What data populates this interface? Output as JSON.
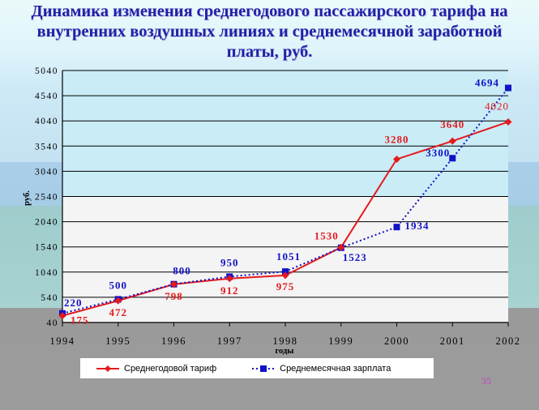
{
  "title_lines": [
    "Динамика изменения среднегодового пассажирского тарифа на",
    "внутренних воздушных линиях и среднемесячной заработной",
    "платы, руб."
  ],
  "page_number": "35",
  "colors": {
    "tariff": "#e41a1c",
    "salary": "#1212c8",
    "title": "#2020a8"
  },
  "chart_data": {
    "type": "line",
    "title": "Динамика изменения среднегодового пассажирского тарифа на внутренних воздушных линиях и среднемесячной заработной платы, руб.",
    "xlabel": "годы",
    "ylabel": "руб.",
    "x": [
      1994,
      1995,
      1996,
      1997,
      1998,
      1999,
      2000,
      2001,
      2002
    ],
    "ylim": [
      40,
      5040
    ],
    "yticks": [
      40,
      540,
      1040,
      1540,
      2040,
      2540,
      3040,
      3540,
      4040,
      4540,
      5040
    ],
    "grid": true,
    "legend_position": "bottom",
    "series": [
      {
        "name": "Среднегодовой тариф",
        "values": [
          175,
          472,
          798,
          912,
          975,
          1530,
          3280,
          3640,
          4020
        ]
      },
      {
        "name": "Среднемесячная зарплата",
        "values": [
          220,
          500,
          800,
          950,
          1051,
          1523,
          1934,
          3300,
          4694
        ]
      }
    ]
  }
}
